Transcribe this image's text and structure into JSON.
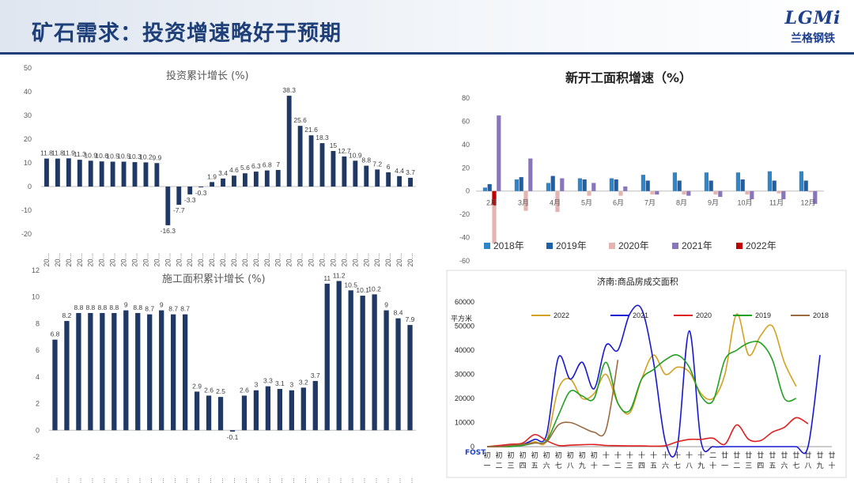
{
  "page": {
    "title": "矿石需求：投资增速略好于预期",
    "logo_mark": "LGMi",
    "logo_name": "兰格钢铁"
  },
  "chart_data": [
    {
      "id": "investment",
      "type": "bar",
      "title": "投资累计增长",
      "title_unit": "(%)",
      "ylim": [
        -20,
        50
      ],
      "yticks": [
        -20,
        -10,
        0,
        10,
        20,
        30,
        40,
        50
      ],
      "values": [
        11.8,
        11.8,
        11.9,
        11.3,
        10.9,
        10.6,
        10.5,
        10.5,
        10.3,
        10.2,
        9.9,
        -16.3,
        -7.7,
        -3.3,
        -0.3,
        1.9,
        3.4,
        4.6,
        5.6,
        6.3,
        6.8,
        7,
        38.3,
        25.6,
        21.6,
        18.3,
        15,
        12.7,
        10.9,
        8.8,
        7.2,
        6,
        4.4,
        3.7
      ],
      "labels": [
        "11.8",
        "11.8",
        "11.9",
        "11.3",
        "10.9",
        "10.6",
        "10.5",
        "10.5",
        "10.3",
        "10.2",
        "9.9",
        "-16.3",
        "-7.7",
        "-3.3",
        "-0.3",
        "1.9",
        "3.4",
        "4.6",
        "5.6",
        "6.3",
        "6.8",
        "7",
        "38.3",
        "25.6",
        "21.6",
        "18.3",
        "15",
        "12.7",
        "10.9",
        "8.8",
        "7.2",
        "6",
        "4.4",
        "3.7"
      ],
      "xtick": "20...",
      "color": "#1f3864"
    },
    {
      "id": "construction_area",
      "type": "bar",
      "title": "施工面积累计增长",
      "title_unit": "(%)",
      "ylim": [
        -2,
        12
      ],
      "yticks": [
        -2,
        0,
        2,
        4,
        6,
        8,
        10,
        12
      ],
      "values": [
        6.8,
        8.2,
        8.8,
        8.8,
        8.8,
        8.8,
        9,
        8.8,
        8.7,
        9,
        8.7,
        8.7,
        2.9,
        2.6,
        2.5,
        -0.1,
        2.6,
        3,
        3.3,
        3.1,
        3,
        3.2,
        3.7,
        11,
        11.2,
        10.5,
        10.1,
        10.2,
        9,
        8.4,
        7.9
      ],
      "labels": [
        "6.8",
        "8.2",
        "8.8",
        "8.8",
        "8.8",
        "8.8",
        "9",
        "8.8",
        "8.7",
        "9",
        "8.7",
        "8.7",
        "2.9",
        "2.6",
        "2.5",
        "-0.1",
        "2.6",
        "3",
        "3.3",
        "3.1",
        "3",
        "3.2",
        "3.7",
        "11",
        "11.2",
        "10.5",
        "10.1",
        "10.2",
        "9",
        "8.4",
        "7.9"
      ],
      "gap_after_index": 14,
      "xtick": "20...",
      "color": "#1f3864"
    },
    {
      "id": "new_construction",
      "type": "bar",
      "title": "新开工面积增速（%）",
      "ylim": [
        -60,
        80
      ],
      "yticks": [
        -60,
        -40,
        -20,
        0,
        20,
        40,
        60,
        80
      ],
      "categories": [
        "2月",
        "3月",
        "4月",
        "5月",
        "6月",
        "7月",
        "8月",
        "9月",
        "10月",
        "11月",
        "12月"
      ],
      "series": [
        {
          "name": "2018年",
          "color": "#2e86c8",
          "values": [
            3,
            10,
            7,
            11,
            11,
            14,
            16,
            16,
            16,
            17,
            17
          ]
        },
        {
          "name": "2019年",
          "color": "#1f5fa8",
          "values": [
            6,
            12,
            13,
            10,
            10,
            9,
            9,
            9,
            10,
            9,
            9
          ]
        },
        {
          "name": "2020年",
          "color": "#e3b4b0",
          "values": [
            -45,
            -17,
            -18,
            -4,
            -4,
            -3,
            -3,
            -3,
            -3,
            -2,
            -1
          ]
        },
        {
          "name": "2021年",
          "color": "#8877b8",
          "values": [
            65,
            28,
            11,
            7,
            4,
            -3,
            -4,
            -5,
            -7,
            -7,
            -11
          ]
        },
        {
          "name": "2022年",
          "color": "#c00000",
          "values": [
            -12,
            null,
            null,
            null,
            null,
            null,
            null,
            null,
            null,
            null,
            null
          ]
        }
      ]
    },
    {
      "id": "jinan_housing",
      "type": "line",
      "title": "济南:商品房成交面积",
      "ylabel": "平方米",
      "ylim": [
        0,
        60000
      ],
      "yticks": [
        0,
        10000,
        20000,
        30000,
        40000,
        50000,
        60000
      ],
      "x_note": "FOST",
      "xtick_top": [
        "初",
        "初",
        "初",
        "初",
        "初",
        "初",
        "初",
        "初",
        "初",
        "初",
        "十",
        "十",
        "十",
        "十",
        "十",
        "十",
        "十",
        "十",
        "十",
        "二",
        "廿",
        "廿",
        "廿",
        "廿",
        "廿",
        "廿",
        "廿",
        "廿",
        "廿",
        "廿"
      ],
      "xtick_bottom": [
        "一",
        "二",
        "三",
        "四",
        "五",
        "六",
        "七",
        "八",
        "九",
        "十",
        "一",
        "二",
        "三",
        "四",
        "五",
        "六",
        "七",
        "八",
        "九",
        "十",
        "一",
        "二",
        "三",
        "四",
        "五",
        "六",
        "七",
        "八",
        "九",
        "十"
      ],
      "x_count": 30,
      "series": [
        {
          "name": "2022",
          "color": "#d4a020",
          "values": [
            0,
            0,
            300,
            800,
            2000,
            2500,
            24000,
            28000,
            20000,
            22000,
            30000,
            18000,
            14000,
            28000,
            38000,
            30000,
            33000,
            31000,
            22000,
            20000,
            30000,
            55000,
            38000,
            46000,
            50000,
            35000,
            25000,
            null,
            null,
            null
          ]
        },
        {
          "name": "2021",
          "color": "#1818d0",
          "values": [
            0,
            200,
            500,
            1000,
            3000,
            5000,
            37000,
            28000,
            35000,
            24000,
            42000,
            40000,
            55000,
            57000,
            35000,
            2000,
            0,
            48000,
            2000,
            0,
            0,
            0,
            0,
            0,
            0,
            0,
            0,
            0,
            38000,
            null
          ]
        },
        {
          "name": "2020",
          "color": "#e02020",
          "values": [
            0,
            500,
            1000,
            1500,
            5000,
            2500,
            500,
            600,
            800,
            900,
            500,
            400,
            300,
            300,
            200,
            400,
            2000,
            3000,
            3000,
            3500,
            1000,
            9000,
            3000,
            2500,
            6000,
            8000,
            12000,
            9500,
            null,
            null
          ]
        },
        {
          "name": "2019",
          "color": "#22a022",
          "values": [
            0,
            0,
            0,
            500,
            1500,
            2500,
            13000,
            23000,
            21000,
            20000,
            35000,
            18000,
            15000,
            28000,
            32000,
            36000,
            38000,
            33000,
            21000,
            19000,
            36000,
            40000,
            43000,
            43000,
            36000,
            20000,
            20000,
            null,
            null,
            null
          ]
        },
        {
          "name": "2018",
          "color": "#9a6a40",
          "values": [
            0,
            0,
            500,
            1000,
            1500,
            2000,
            9000,
            10000,
            8000,
            6000,
            7000,
            36000,
            null,
            null,
            null,
            null,
            null,
            null,
            null,
            null,
            null,
            null,
            null,
            null,
            null,
            null,
            null,
            null,
            null,
            null
          ]
        }
      ]
    }
  ]
}
